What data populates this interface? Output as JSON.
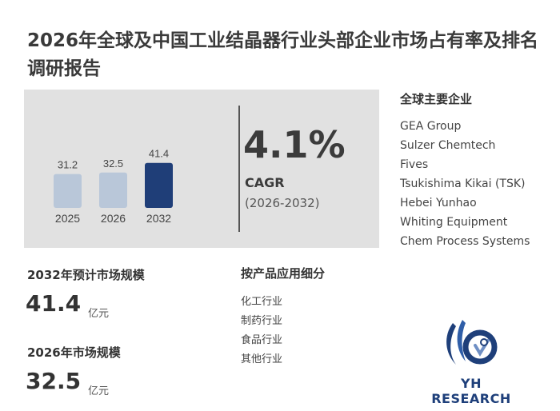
{
  "title": "2026年全球及中国工业结晶器行业头部企业市场占有率及排名调研报告",
  "chart_data": {
    "type": "bar",
    "categories": [
      "2025",
      "2026",
      "2032"
    ],
    "values": [
      31.2,
      32.5,
      41.4
    ],
    "value_labels": [
      "31.2",
      "32.5",
      "41.4"
    ],
    "highlight_index": 2,
    "colors": {
      "normal": "#b9c7d9",
      "highlight": "#1f3e78"
    }
  },
  "cagr": {
    "value": "4.1%",
    "label": "CAGR",
    "range": "(2026-2032)"
  },
  "companies": {
    "heading": "全球主要企业",
    "items": [
      "GEA Group",
      "Sulzer Chemtech",
      "Fives",
      "Tsukishima Kikai (TSK)",
      "Hebei Yunhao",
      "Whiting Equipment",
      "Chem Process Systems"
    ]
  },
  "metrics": {
    "forecast_label": "2032年预计市场规模",
    "forecast_value": "41.4",
    "forecast_unit": "亿元",
    "current_label": "2026年市场规模",
    "current_value": "32.5",
    "current_unit": "亿元"
  },
  "segments": {
    "heading": "按产品应用细分",
    "items": [
      "化工行业",
      "制药行业",
      "食品行业",
      "其他行业"
    ]
  },
  "logo": {
    "text": "YH RESEARCH"
  },
  "colors": {
    "panel_bg": "#e1e1e1",
    "brand": "#1e3f7a"
  }
}
